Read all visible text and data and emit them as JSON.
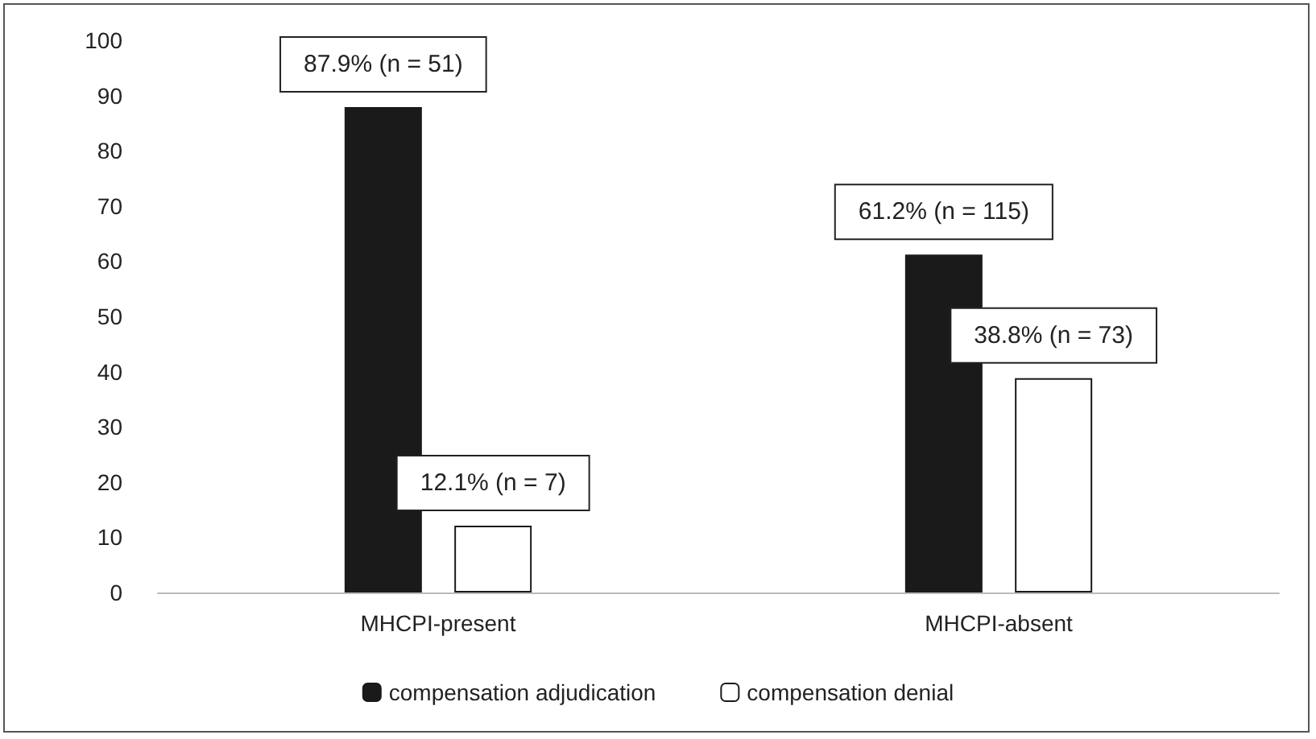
{
  "chart_data": {
    "type": "bar",
    "categories": [
      "MHCPI-present",
      "MHCPI-absent"
    ],
    "series": [
      {
        "name": "compensation adjudication",
        "color": "#1a1a1a",
        "values": [
          87.9,
          61.2
        ],
        "value_labels": [
          "87.9% (n = 51)",
          "61.2% (n = 115)"
        ]
      },
      {
        "name": "compensation denial",
        "color": "#ffffff",
        "values": [
          12.1,
          38.8
        ],
        "value_labels": [
          "12.1% (n = 7)",
          "38.8% (n = 73)"
        ]
      }
    ],
    "ylim": [
      0,
      100
    ],
    "yticks": [
      0,
      10,
      20,
      30,
      40,
      50,
      60,
      70,
      80,
      90,
      100
    ],
    "grid": false,
    "legend": "bottom"
  }
}
